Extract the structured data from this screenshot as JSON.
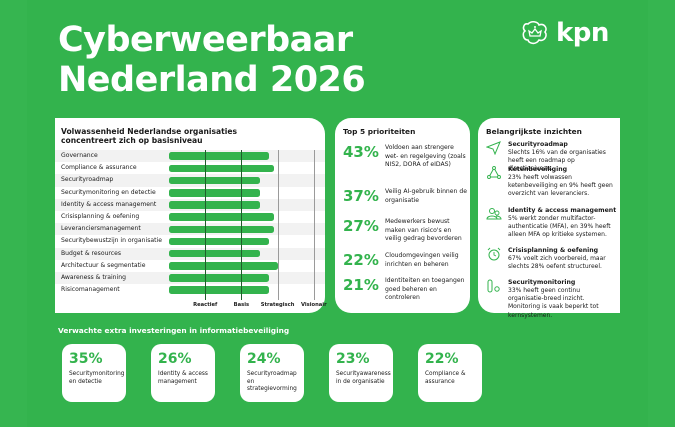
{
  "header": {
    "title_line1": "Cyberweerbaar",
    "title_line2": "Nederland 2026",
    "brand": "kpn",
    "brand_icon": "kpn-crown-cloud-icon"
  },
  "colors": {
    "accent": "#33b34d",
    "background": "#33b34d",
    "panel": "#ffffff",
    "text": "#1a1a1a"
  },
  "chart_data": {
    "type": "bar",
    "orientation": "horizontal",
    "title": "Volwassenheid Nederlandse organisaties concentreert zich op basisniveau",
    "title_line1": "Volwassenheid Nederlandse organisaties",
    "title_line2": "concentreert zich op basisniveau",
    "categories": [
      "Governance",
      "Compliance & assurance",
      "Securityroadmap",
      "Securitymonitoring en detectie",
      "Identity & access management",
      "Crisisplanning & oefening",
      "Leveranciersmanagement",
      "Securitybewustzijn in organisatie",
      "Budget & resources",
      "Architectuur & segmentatie",
      "Awareness & training",
      "Risicomanagement"
    ],
    "values": [
      2.75,
      2.9,
      2.5,
      2.5,
      2.5,
      2.9,
      2.9,
      2.75,
      2.5,
      3.0,
      2.75,
      2.75
    ],
    "xlim": [
      0,
      4
    ],
    "x_ticks": [
      1,
      2,
      3,
      4
    ],
    "x_tick_labels": [
      "Reactief",
      "Basis",
      "Strategisch",
      "Visionair"
    ],
    "xlabel": "",
    "ylabel": "",
    "grid": "vertical lines at maturity levels",
    "legend": "none"
  },
  "priorities": {
    "title": "Top 5 prioriteiten",
    "items": [
      {
        "pct": "43%",
        "text": "Voldoen aan strengere wet- en regelgeving (zoals NIS2, DORA of eIDAS)"
      },
      {
        "pct": "37%",
        "text": "Veilig AI-gebruik binnen de organisatie"
      },
      {
        "pct": "27%",
        "text": "Medewerkers bewust maken van risico's en veilig gedrag bevorderen"
      },
      {
        "pct": "22%",
        "text": "Cloudomgevingen veilig inrichten en beheren"
      },
      {
        "pct": "21%",
        "text": "Identiteiten en toegangen goed beheren en controleren"
      }
    ]
  },
  "insights": {
    "title": "Belangrijkste inzichten",
    "items": [
      {
        "icon": "send-icon",
        "title": "Securityroadmap",
        "text": "Slechts 16% van de organisaties heeft een roadmap op directieniveau."
      },
      {
        "icon": "network-icon",
        "title": "Ketenbeveiliging",
        "text": "23% heeft volwassen ketenbeveiliging en 9% heeft geen overzicht van leveranciers."
      },
      {
        "icon": "users-icon",
        "title": "Identity & access management",
        "text": "5% werkt zonder multifactor-authenticatie (MFA), en 39% heeft alleen MFA op kritieke systemen."
      },
      {
        "icon": "alarm-clock-icon",
        "title": "Crisisplanning & oefening",
        "text": "67% voelt zich voorbereid, maar slechts 28% oefent structureel."
      },
      {
        "icon": "monitoring-icon",
        "title": "Securitymonitoring",
        "text": "33% heeft geen continu organisatie-breed inzicht. Monitoring is vaak beperkt tot kernsystemen."
      }
    ]
  },
  "investments": {
    "title": "Verwachte extra investeringen in informatiebeveiliging",
    "items": [
      {
        "pct": "35%",
        "label": "Securitymonitoring en detectie"
      },
      {
        "pct": "26%",
        "label": "Identity & access management"
      },
      {
        "pct": "24%",
        "label": "Securityroadmap en strategievorming"
      },
      {
        "pct": "23%",
        "label": "Securityawareness in de organisatie"
      },
      {
        "pct": "22%",
        "label": "Compliance & assurance"
      }
    ]
  }
}
